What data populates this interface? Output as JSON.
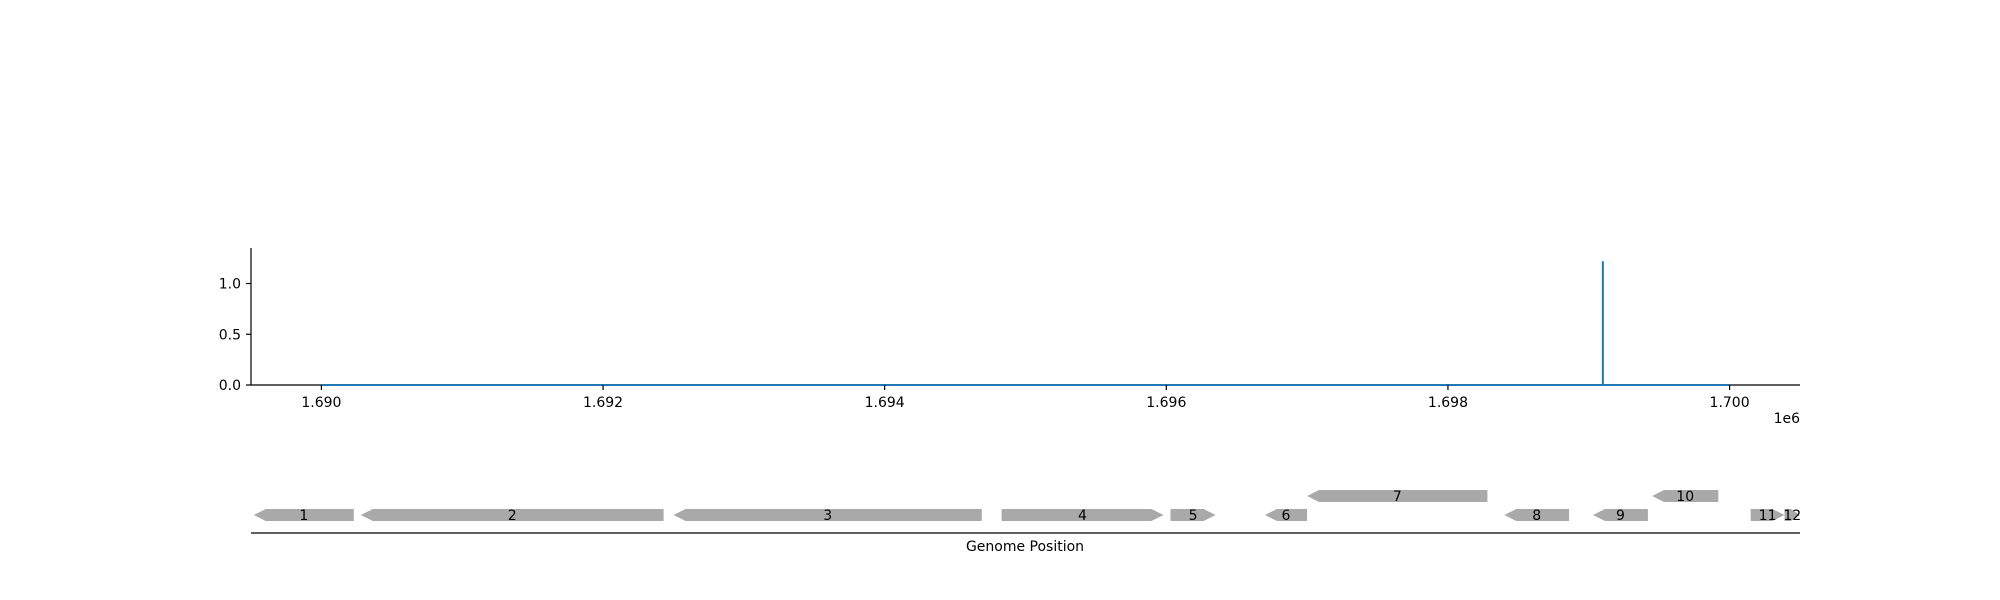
{
  "chart_data": {
    "type": "line",
    "x_range": [
      1689500,
      1700500
    ],
    "xlim": [
      1689500,
      1700500
    ],
    "ylim": [
      0,
      1.35
    ],
    "x_ticks": [
      1690000,
      1692000,
      1694000,
      1696000,
      1698000,
      1700000
    ],
    "x_tick_labels": [
      "1.690",
      "1.692",
      "1.694",
      "1.696",
      "1.698",
      "1.700"
    ],
    "x_offset_label": "1e6",
    "y_ticks": [
      0.0,
      0.5,
      1.0
    ],
    "y_tick_labels": [
      "0.0",
      "0.5",
      "1.0"
    ],
    "grid": false,
    "series": [
      {
        "color": "#1f77b4",
        "x": [
          1690000,
          1699100,
          1699100,
          1699100,
          1700000
        ],
        "y": [
          0,
          0,
          1.22,
          0,
          0
        ]
      }
    ],
    "gene_track": {
      "xlabel": "Genome Position",
      "color": "#a9a9a9",
      "genes": [
        {
          "label": "1",
          "start": 1689520,
          "end": 1690230,
          "strand": "-",
          "row": 0
        },
        {
          "label": "2",
          "start": 1690280,
          "end": 1692430,
          "strand": "-",
          "row": 0
        },
        {
          "label": "3",
          "start": 1692500,
          "end": 1694690,
          "strand": "-",
          "row": 0
        },
        {
          "label": "4",
          "start": 1694830,
          "end": 1695980,
          "strand": "+",
          "row": 0
        },
        {
          "label": "5",
          "start": 1696030,
          "end": 1696350,
          "strand": "+",
          "row": 0
        },
        {
          "label": "6",
          "start": 1696700,
          "end": 1697000,
          "strand": "-",
          "row": 0
        },
        {
          "label": "7",
          "start": 1697000,
          "end": 1698280,
          "strand": "-",
          "row": 1
        },
        {
          "label": "8",
          "start": 1698400,
          "end": 1698860,
          "strand": "-",
          "row": 0
        },
        {
          "label": "9",
          "start": 1699030,
          "end": 1699420,
          "strand": "-",
          "row": 0
        },
        {
          "label": "10",
          "start": 1699450,
          "end": 1699920,
          "strand": "-",
          "row": 1
        },
        {
          "label": "11",
          "start": 1700150,
          "end": 1700390,
          "strand": "+",
          "row": 0
        },
        {
          "label": "12",
          "start": 1700390,
          "end": 1700500,
          "strand": "+",
          "row": 0
        }
      ]
    }
  }
}
